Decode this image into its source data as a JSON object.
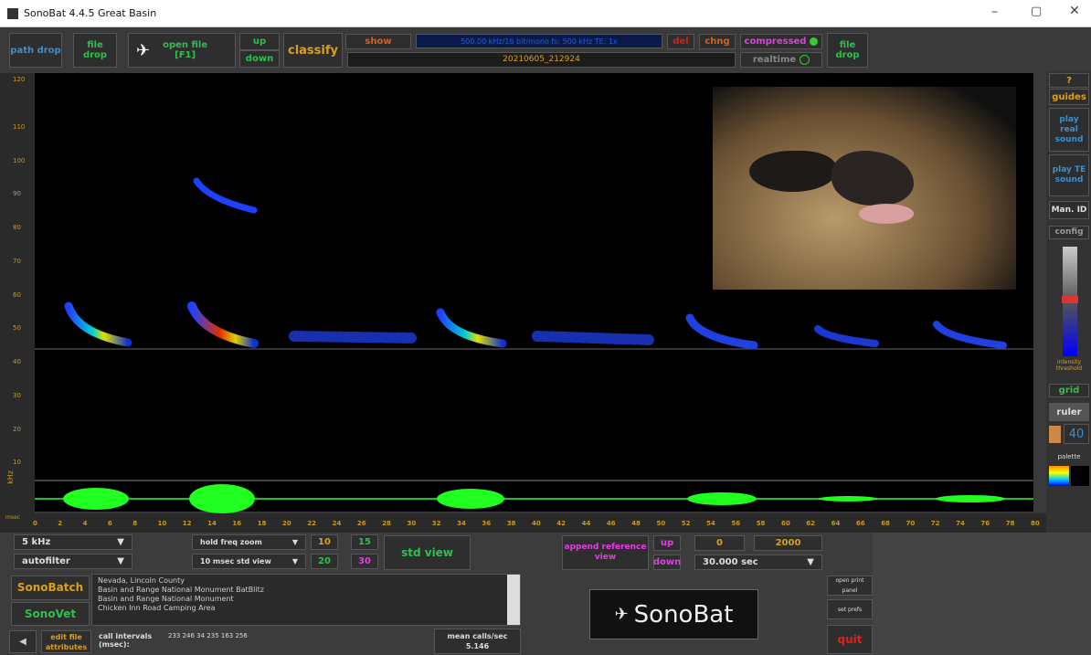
{
  "window": {
    "title": "SonoBat 4.4.5 Great Basin"
  },
  "toolbar": {
    "path_drop": "path drop",
    "file_drop": "file drop",
    "open_file": "open file",
    "open_file_key": "[F1]",
    "up": "up",
    "down": "down",
    "classify": "classify",
    "show": "show",
    "status": "500.00 kHz/16 bit/mono  fs: 500 kHz  TE: 1x",
    "filename": "20210605_212924",
    "del": "del",
    "chng": "chng",
    "compressed": "compressed",
    "realtime": "realtime",
    "file_drop_right": "file drop"
  },
  "side": {
    "help": "?",
    "guides": "guides",
    "play_real": "play real sound",
    "play_te": "play TE sound",
    "man_id": "Man. ID",
    "config": "config",
    "threshold": "intensity threshold",
    "grid": "grid",
    "ruler": "ruler",
    "ruler_value": "40",
    "palette": "palette"
  },
  "axes": {
    "y_ticks": [
      120,
      110,
      100,
      90,
      80,
      70,
      60,
      50,
      40,
      30,
      20,
      10
    ],
    "y_label": "kHz",
    "x_ticks": [
      0,
      2,
      4,
      6,
      8,
      10,
      12,
      14,
      16,
      18,
      20,
      22,
      24,
      26,
      28,
      30,
      32,
      34,
      36,
      38,
      40,
      42,
      44,
      46,
      48,
      50,
      52,
      54,
      56,
      58,
      60,
      62,
      64,
      66,
      68,
      70,
      72,
      74,
      76,
      78,
      80
    ],
    "x_label": "msec"
  },
  "controls": {
    "freq": "5 kHz",
    "autofilter": "autofilter",
    "hold_zoom": "hold freq zoom",
    "std_view_ms": "10 msec std view",
    "n10": "10",
    "n15": "15",
    "n20": "20",
    "n30": "30",
    "std_view": "std view",
    "append": "append reference view",
    "up": "up",
    "down": "down",
    "start": "0",
    "end": "2000",
    "duration": "30.000 sec"
  },
  "bottom": {
    "sonobatch": "SonoBatch",
    "sonovet": "SonoVet",
    "notes": [
      "Nevada, Lincoln County",
      "Basin and Range National Monument BatBlitz",
      "Basin and Range National Monument",
      "Chicken Inn Road Camping Area"
    ],
    "edit_attributes": "edit file attributes",
    "call_intervals": "call intervals (msec):",
    "intervals": "233 246 34 235 163 256",
    "mean_calls": "mean calls/sec",
    "mean_value": "5.146",
    "logo": "SonoBat",
    "print_panel": "open print panel",
    "prefs": "set prefs",
    "quit": "quit"
  }
}
